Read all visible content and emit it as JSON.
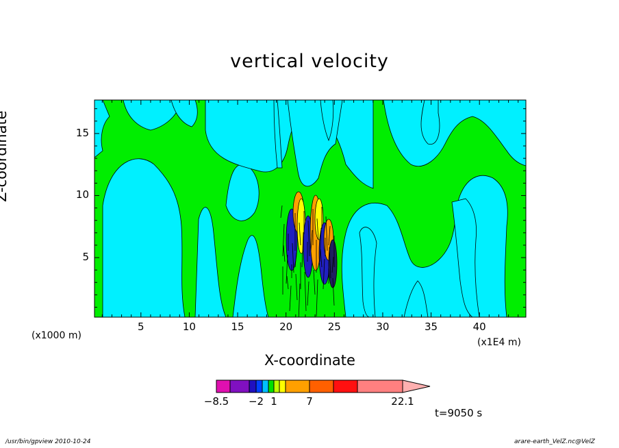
{
  "chart_data": {
    "type": "heatmap",
    "title": "vertical velocity",
    "xlabel": "X-coordinate",
    "ylabel": "Z-coordinate",
    "x_unit": "(x1E4 m)",
    "y_unit": "(x1000 m)",
    "xlim": [
      0.2,
      44.8
    ],
    "ylim": [
      0.2,
      17.7
    ],
    "x_ticks": [
      5,
      10,
      15,
      20,
      25,
      30,
      35,
      40
    ],
    "y_ticks": [
      5,
      10,
      15
    ],
    "colorbar": {
      "labels": [
        {
          "value": -8.5,
          "text": "−8.5"
        },
        {
          "value": -2,
          "text": "−2"
        },
        {
          "value": 1,
          "text": "1"
        },
        {
          "value": 7,
          "text": "7"
        },
        {
          "value": 22.1,
          "text": "22.1"
        }
      ],
      "colors": [
        "#e010b0",
        "#8010c0",
        "#2010c0",
        "#0040ff",
        "#00c0ff",
        "#00e000",
        "#c0ff00",
        "#ffff00",
        "#ffa000",
        "#ff6000",
        "#ff1010",
        "#ff8080",
        "#ffb0b0"
      ]
    },
    "colors": {
      "negative": "#00f0ff",
      "positive": "#00ee00",
      "strong_up": "#ffa000",
      "strong_down": "#2020c0",
      "weak_up": "#ffff00"
    }
  },
  "time_label": "t=9050 s",
  "footer": {
    "left": "/usr/bin/gpview   2010-10-24",
    "right": "arare-earth_VelZ.nc@VelZ"
  }
}
